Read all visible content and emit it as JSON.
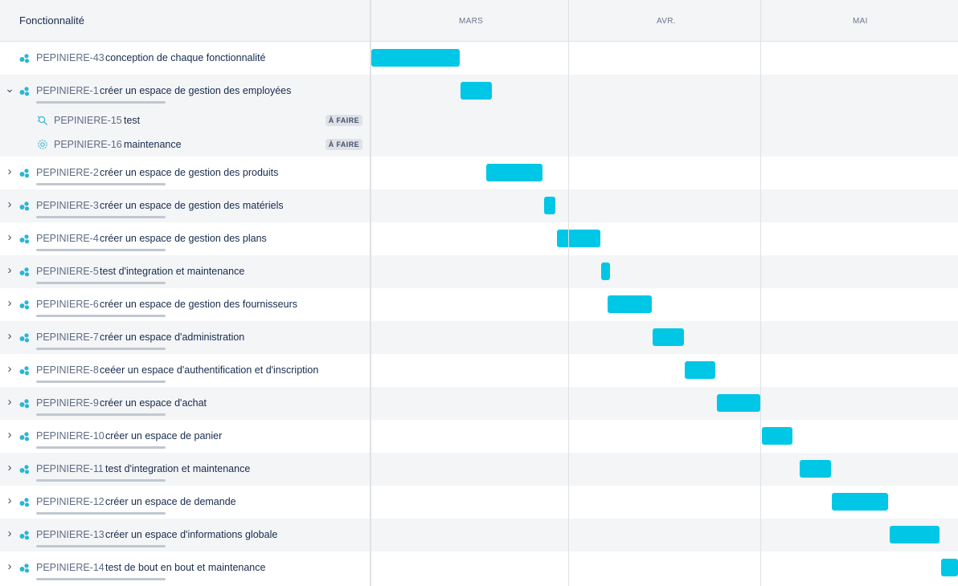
{
  "header": {
    "column_title": "Fonctionnalité",
    "months": [
      "MARS",
      "AVR.",
      "MAI"
    ]
  },
  "colors": {
    "bar": "#00c7e6",
    "alt_row": "#f4f5f7",
    "divider": "#dfe1e6"
  },
  "epics": [
    {
      "key": "PEPINIERE-43",
      "summary": "conception de chaque fonctionnalité"
    },
    {
      "key": "PEPINIERE-1",
      "summary": "créer un espace de gestion des employées",
      "expanded": true,
      "children": [
        {
          "key": "PEPINIERE-15",
          "summary": "test",
          "status": "À FAIRE",
          "icon": "bug-hunt-icon"
        },
        {
          "key": "PEPINIERE-16",
          "summary": "maintenance",
          "status": "À FAIRE",
          "icon": "gear-cog-icon"
        }
      ]
    },
    {
      "key": "PEPINIERE-2",
      "summary": "créer un espace de gestion des produits"
    },
    {
      "key": "PEPINIERE-3",
      "summary": "créer un espace de gestion des matériels"
    },
    {
      "key": "PEPINIERE-4",
      "summary": "créer un espace de gestion des plans"
    },
    {
      "key": "PEPINIERE-5",
      "summary": "test d'integration et maintenance"
    },
    {
      "key": "PEPINIERE-6",
      "summary": "créer un espace de gestion des fournisseurs"
    },
    {
      "key": "PEPINIERE-7",
      "summary": "créer un espace d'administration"
    },
    {
      "key": "PEPINIERE-8",
      "summary": "ceéer un espace d'authentification et d'inscription"
    },
    {
      "key": "PEPINIERE-9",
      "summary": "créer un espace d'achat"
    },
    {
      "key": "PEPINIERE-10",
      "summary": "créer un espace de panier"
    },
    {
      "key": "PEPINIERE-11",
      "summary": "test d'integration et maintenance"
    },
    {
      "key": "PEPINIERE-12",
      "summary": "créer un espace de demande"
    },
    {
      "key": "PEPINIERE-13",
      "summary": "créer un espace d'informations globale"
    },
    {
      "key": "PEPINIERE-14",
      "summary": "test de bout en bout et maintenance"
    }
  ]
}
